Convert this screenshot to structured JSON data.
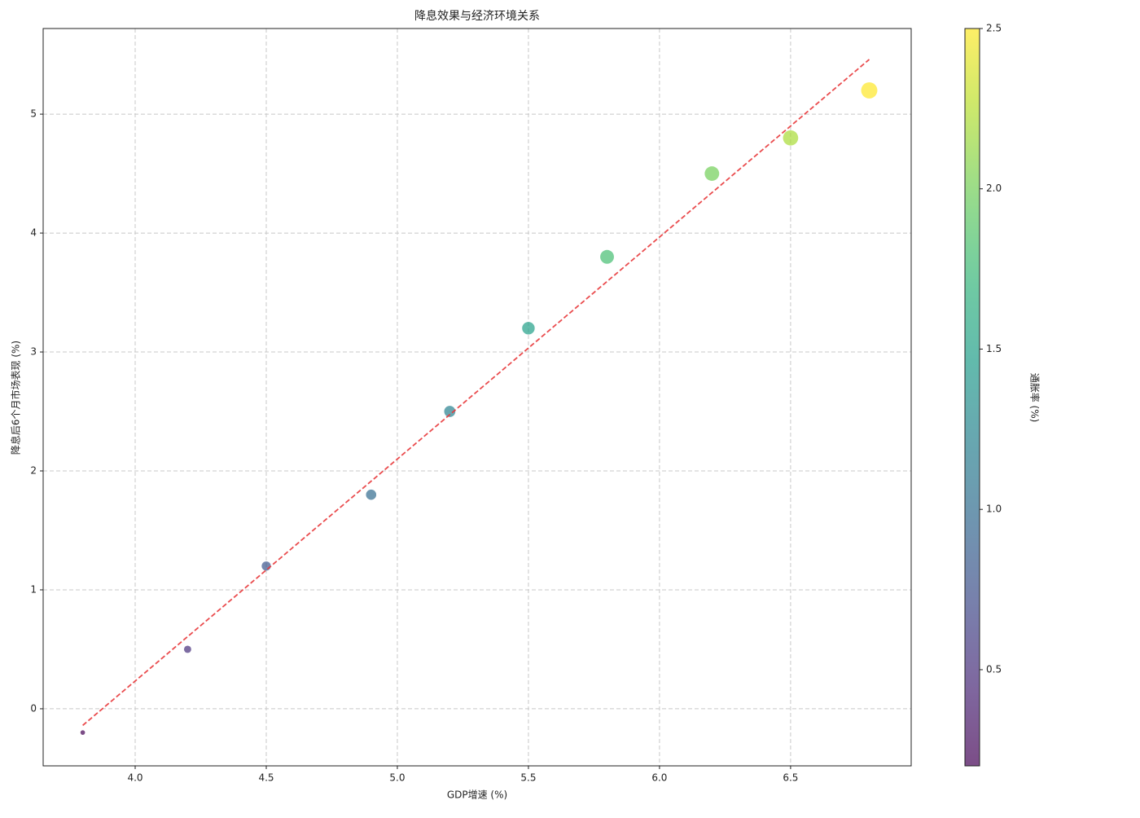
{
  "chart_data": {
    "type": "scatter",
    "title": "降息效果与经济环境关系",
    "xlabel": "GDP增速 (%)",
    "ylabel": "降息后6个月市场表现 (%)",
    "x": [
      3.8,
      4.2,
      4.5,
      4.9,
      5.2,
      5.5,
      5.8,
      6.2,
      6.5,
      6.8
    ],
    "y": [
      -0.2,
      0.5,
      1.2,
      1.8,
      2.5,
      3.2,
      3.8,
      4.5,
      4.8,
      5.2
    ],
    "c": [
      0.2,
      0.5,
      0.8,
      1.0,
      1.2,
      1.5,
      1.8,
      2.0,
      2.2,
      2.5
    ],
    "cmap": "viridis",
    "alpha": 0.7,
    "clabel": "通胀率 (%)",
    "clim": [
      0.2,
      2.5
    ],
    "cticks": [
      0.5,
      {
        "value": 1.0,
        "label": "1.0"
      },
      1.5,
      {
        "value": 2.0,
        "label": "2.0"
      },
      2.5
    ],
    "xlim": [
      3.649,
      6.96
    ],
    "ylim": [
      -0.48,
      5.72
    ],
    "xticks": [
      {
        "value": 4.0,
        "label": "4.0"
      },
      4.5,
      {
        "value": 5.0,
        "label": "5.0"
      },
      5.5,
      {
        "value": 6.0,
        "label": "6.0"
      },
      6.5
    ],
    "yticks": [
      0,
      1,
      2,
      3,
      4,
      5
    ],
    "grid": true,
    "trendline": {
      "x": [
        3.8,
        6.8
      ],
      "y": [
        -0.14,
        5.46
      ],
      "color": "#e8383b"
    }
  }
}
